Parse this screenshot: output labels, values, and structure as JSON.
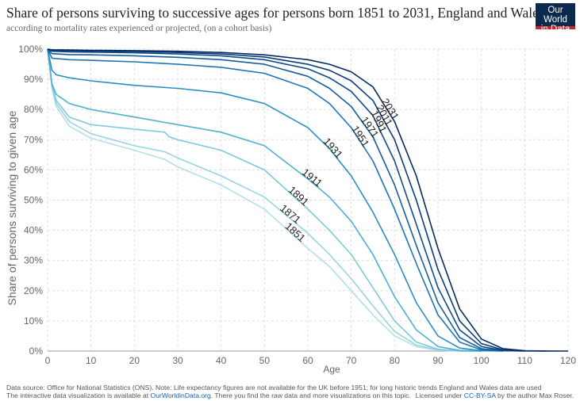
{
  "header": {
    "title": "Share of persons surviving  to successive ages for persons born 1851 to 2031, England and Wales",
    "subtitle": "according to mortality rates experienced or projected, (on a cohort basis)",
    "logo_line1": "Our World",
    "logo_line2": "in Data"
  },
  "footer": {
    "line1": "Data source: Office for National Statistics (ONS). Note: Life expectancy figures are not available for the UK before 1951; for long historic trends England and Wales data are used",
    "line2_pre": "The interactive data visualization is available at ",
    "line2_link": "OurWorldinData.org",
    "line2_post": ". There you find the raw data and more visualizations on this topic.",
    "license_pre": "Licensed under ",
    "license_link": "CC-BY-SA",
    "license_post": " by the author Max Roser."
  },
  "chart_data": {
    "type": "line",
    "title": "Share of persons surviving  to successive ages for persons born 1851 to 2031, England and Wales",
    "subtitle": "according to mortality rates experienced or projected, (on a cohort basis)",
    "xlabel": "Age",
    "ylabel": "Share of persons surviving to given age",
    "xlim": [
      0,
      120
    ],
    "ylim": [
      0,
      100
    ],
    "xticks": [
      "0",
      "10",
      "20",
      "30",
      "40",
      "50",
      "60",
      "70",
      "80",
      "90",
      "100",
      "110",
      "120"
    ],
    "yticks": [
      "0%",
      "10%",
      "20%",
      "30%",
      "40%",
      "50%",
      "60%",
      "70%",
      "80%",
      "90%",
      "100%"
    ],
    "grid": true,
    "series": [
      {
        "name": "1851",
        "color": "#b3dfe8",
        "x": [
          0,
          1,
          2,
          5,
          10,
          20,
          27,
          30,
          40,
          50,
          60,
          65,
          70,
          75,
          80,
          85,
          90,
          95,
          100
        ],
        "y": [
          100,
          87,
          81,
          74.5,
          70.5,
          66.5,
          63.5,
          61,
          55,
          47,
          34,
          28,
          20,
          12,
          5,
          1.5,
          0.3,
          0,
          0
        ]
      },
      {
        "name": "1871",
        "color": "#98d4e1",
        "x": [
          0,
          1,
          2,
          5,
          10,
          20,
          27,
          30,
          40,
          50,
          60,
          65,
          70,
          75,
          80,
          85,
          90,
          95,
          100
        ],
        "y": [
          100,
          87.5,
          82,
          76,
          72,
          68,
          66,
          64,
          58,
          51,
          39,
          32,
          24,
          15,
          6.5,
          2,
          0.4,
          0,
          0
        ]
      },
      {
        "name": "1891",
        "color": "#7ec8da",
        "x": [
          0,
          1,
          2,
          5,
          10,
          20,
          27,
          28,
          30,
          40,
          50,
          60,
          65,
          70,
          75,
          80,
          85,
          90,
          95,
          100
        ],
        "y": [
          100,
          88,
          83,
          77.5,
          75,
          73.5,
          72.5,
          71,
          70,
          66.5,
          60,
          47,
          40,
          32,
          21,
          10,
          3,
          0.6,
          0,
          0
        ]
      },
      {
        "name": "1911",
        "color": "#4fb0cf",
        "x": [
          0,
          1,
          2,
          5,
          10,
          20,
          30,
          40,
          50,
          60,
          65,
          70,
          75,
          80,
          85,
          90,
          95,
          100
        ],
        "y": [
          100,
          88.5,
          85,
          82,
          80,
          77.5,
          75,
          72.5,
          68,
          57,
          51,
          43,
          32,
          18,
          7,
          1.5,
          0.2,
          0
        ]
      },
      {
        "name": "1931",
        "color": "#2a8ec2",
        "x": [
          0,
          1,
          2,
          5,
          10,
          20,
          30,
          40,
          50,
          60,
          65,
          70,
          75,
          80,
          85,
          90,
          95,
          100,
          105
        ],
        "y": [
          100,
          93,
          91.5,
          90.5,
          89.5,
          88,
          87,
          85.5,
          82,
          74,
          67,
          58,
          46,
          32,
          16,
          5,
          1,
          0.1,
          0
        ]
      },
      {
        "name": "1951",
        "color": "#1f73b0",
        "x": [
          0,
          1,
          5,
          10,
          20,
          30,
          40,
          50,
          60,
          65,
          70,
          75,
          80,
          85,
          90,
          95,
          100,
          105
        ],
        "y": [
          100,
          97,
          96.5,
          96.3,
          95.8,
          95,
          94,
          92,
          87,
          82,
          74,
          63,
          47,
          29,
          12,
          3,
          0.4,
          0
        ]
      },
      {
        "name": "1971",
        "color": "#155d9d",
        "x": [
          0,
          1,
          5,
          10,
          20,
          30,
          40,
          50,
          60,
          65,
          70,
          75,
          80,
          85,
          90,
          95,
          100,
          105,
          110
        ],
        "y": [
          100,
          98.5,
          98.2,
          98.1,
          97.8,
          97.3,
          96.5,
          95,
          91,
          87,
          81,
          71,
          55,
          35,
          16,
          4.5,
          0.8,
          0.1,
          0
        ]
      },
      {
        "name": "1991",
        "color": "#0f4b8b",
        "x": [
          0,
          1,
          5,
          10,
          20,
          30,
          40,
          50,
          60,
          65,
          70,
          75,
          80,
          85,
          90,
          95,
          100,
          105,
          110
        ],
        "y": [
          100,
          99.3,
          99.1,
          99,
          98.8,
          98.4,
          97.8,
          96.5,
          93.5,
          90.5,
          86,
          78,
          63,
          42,
          21,
          7,
          1.5,
          0.2,
          0
        ]
      },
      {
        "name": "2011",
        "color": "#0b3b78",
        "x": [
          0,
          1,
          5,
          10,
          20,
          30,
          40,
          50,
          60,
          65,
          70,
          75,
          80,
          85,
          90,
          95,
          100,
          105,
          110,
          115
        ],
        "y": [
          100,
          99.6,
          99.5,
          99.4,
          99.2,
          98.9,
          98.4,
          97.4,
          95,
          93,
          89.5,
          83,
          70,
          50,
          27,
          10,
          2.5,
          0.4,
          0.05,
          0
        ]
      },
      {
        "name": "2031",
        "color": "#082a5e",
        "x": [
          0,
          1,
          5,
          10,
          20,
          30,
          40,
          50,
          60,
          65,
          70,
          75,
          80,
          85,
          90,
          95,
          100,
          105,
          110,
          115,
          120
        ],
        "y": [
          100,
          99.8,
          99.7,
          99.6,
          99.5,
          99.3,
          98.9,
          98.1,
          96.5,
          95,
          92.5,
          87.5,
          76,
          58,
          34,
          14,
          4,
          0.8,
          0.1,
          0.02,
          0
        ]
      }
    ]
  }
}
